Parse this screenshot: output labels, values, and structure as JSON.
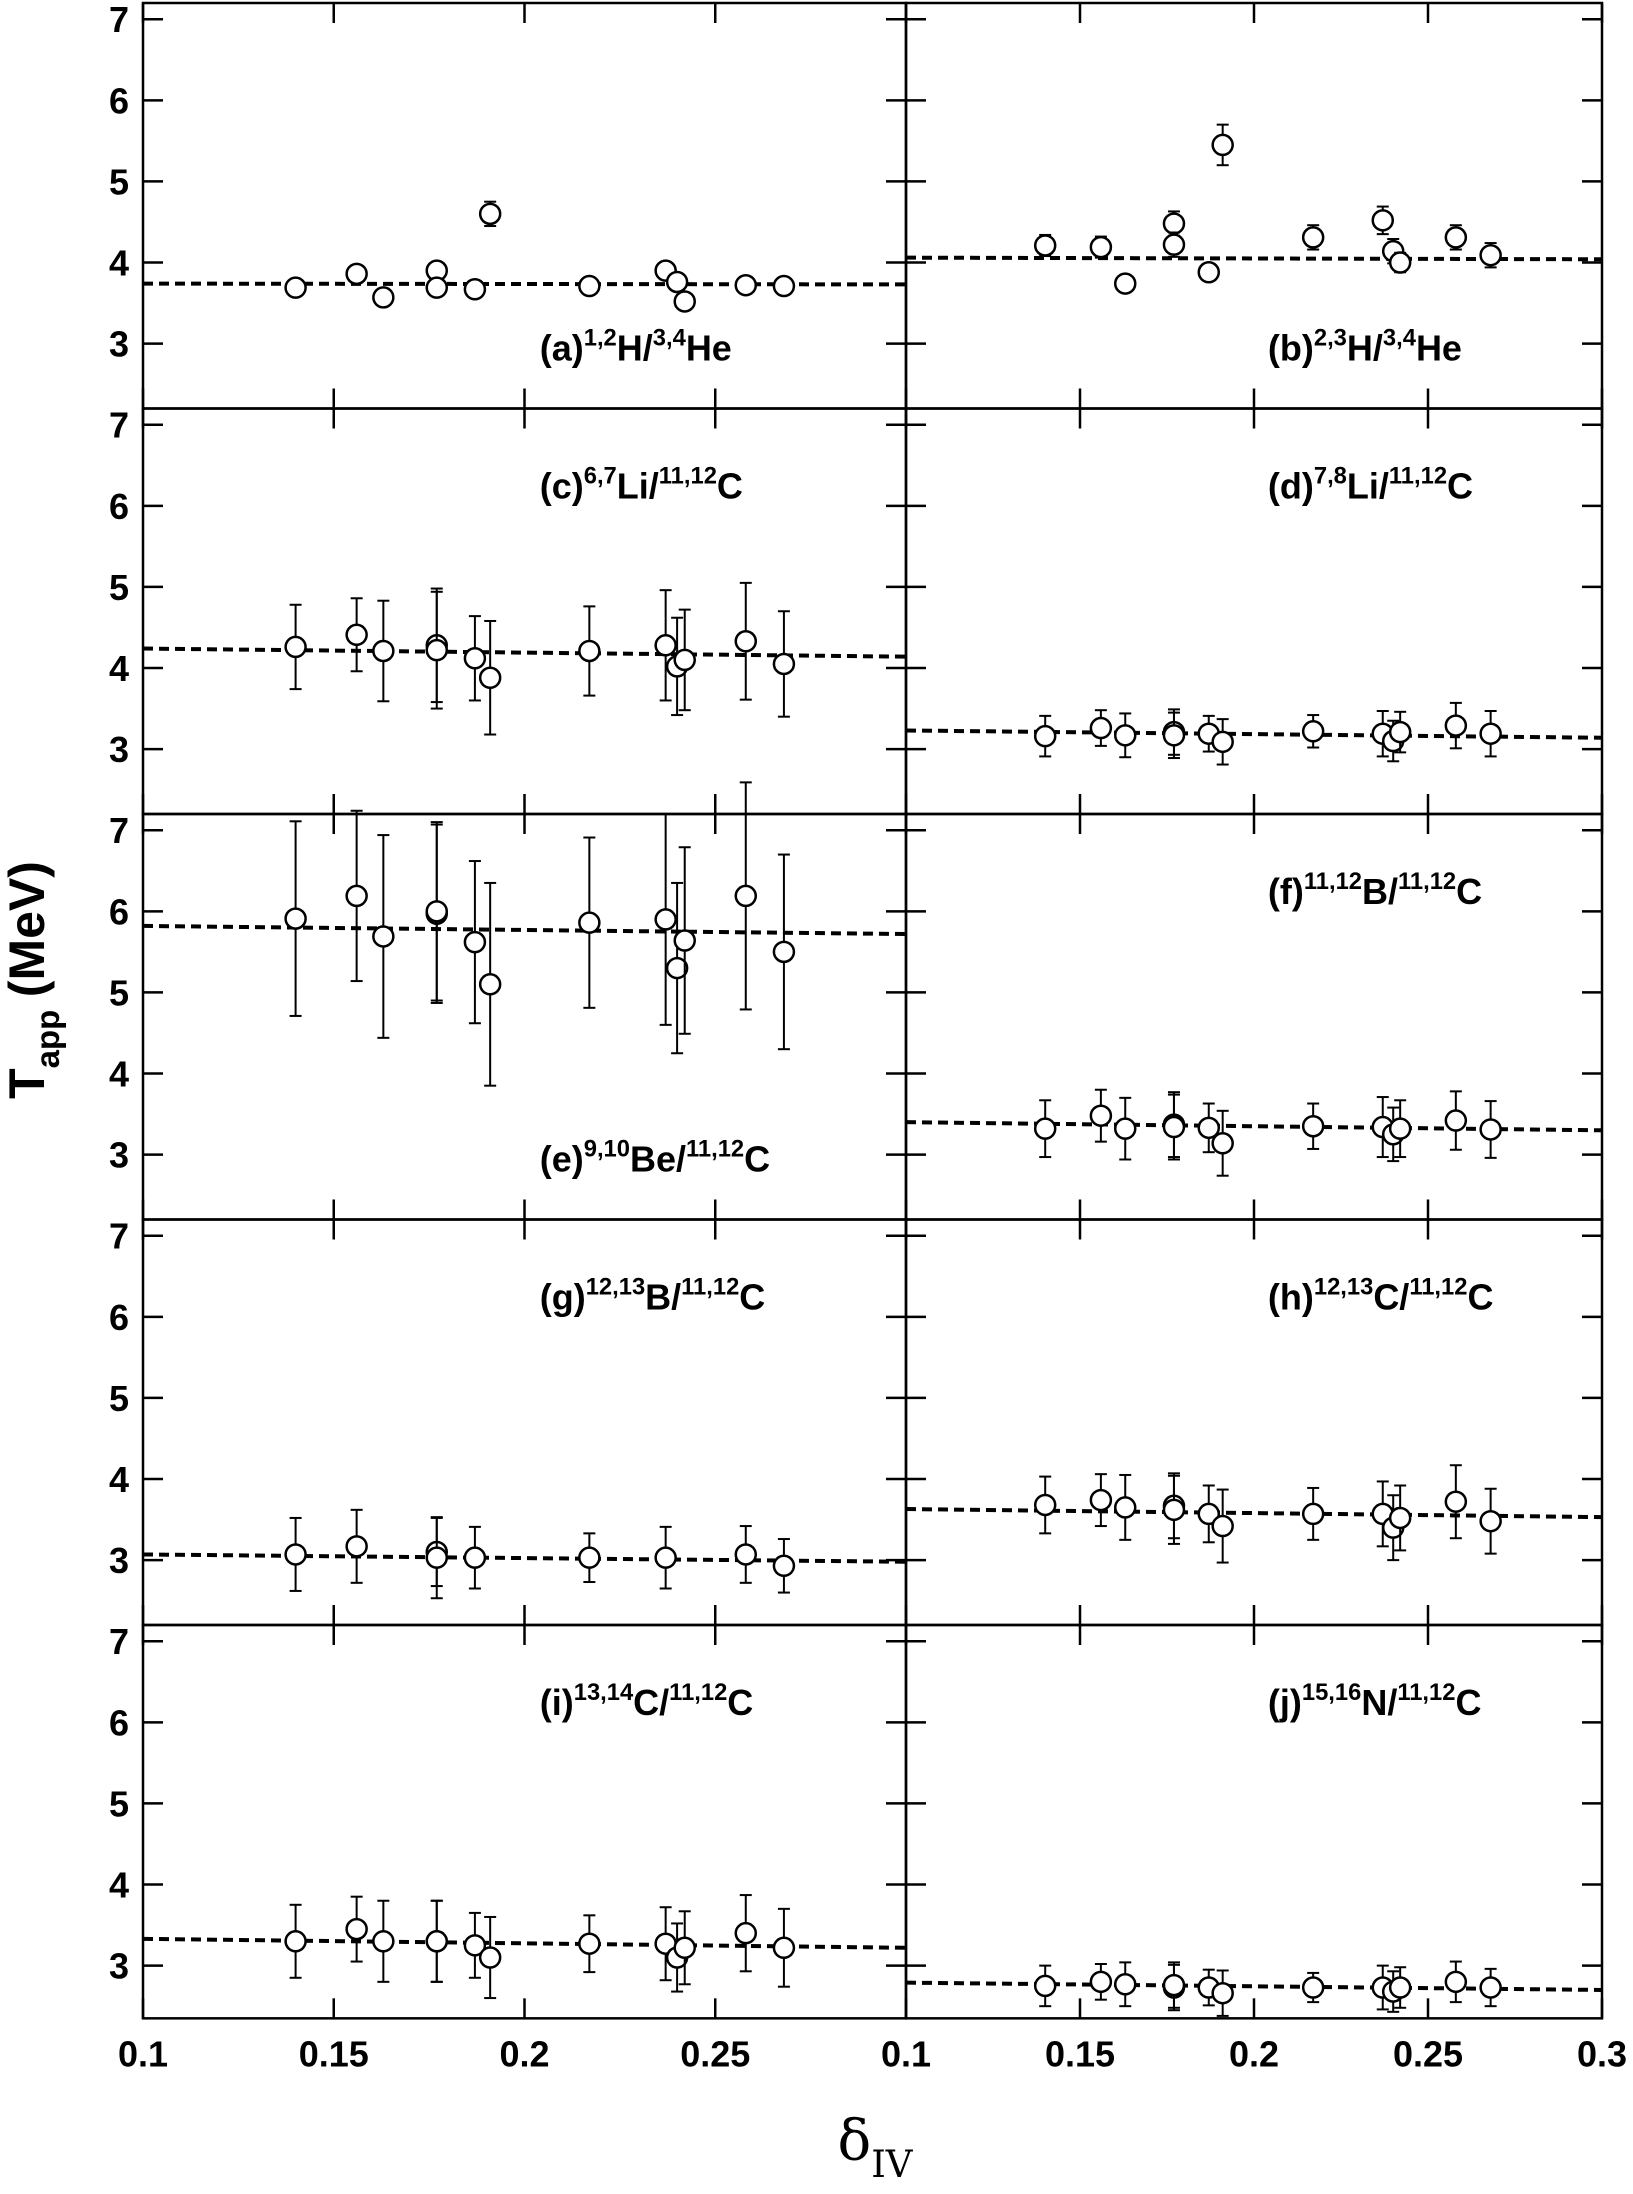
{
  "figure": {
    "ylabel_parts": [
      {
        "text": "T"
      },
      {
        "text": "app",
        "sub": true
      },
      {
        "text": "(MeV)"
      }
    ],
    "xlabel_parts": [
      {
        "text": "δ"
      },
      {
        "text": "IV",
        "sub": true
      }
    ]
  },
  "chart_data": [
    {
      "type": "scatter",
      "label_position": "bottom-right",
      "label_parts": [
        {
          "text": "(a)"
        },
        {
          "text": "1,2",
          "sup": true
        },
        {
          "text": "H/"
        },
        {
          "text": "3,4",
          "sup": true
        },
        {
          "text": "He"
        }
      ],
      "x": [
        0.14,
        0.156,
        0.163,
        0.177,
        0.177,
        0.187,
        0.191,
        0.217,
        0.237,
        0.24,
        0.242,
        0.258,
        0.268
      ],
      "values": [
        3.69,
        3.86,
        3.57,
        3.9,
        3.69,
        3.67,
        4.6,
        3.71,
        3.9,
        3.76,
        3.52,
        3.72,
        3.71
      ],
      "errors": [
        0.07,
        0.07,
        0.07,
        0.07,
        0.07,
        0.07,
        0.15,
        0.07,
        0.07,
        0.07,
        0.07,
        0.07,
        0.07
      ],
      "fit": {
        "x": [
          0.1,
          0.3
        ],
        "y": [
          3.74,
          3.73
        ]
      },
      "xlim": [
        0.1,
        0.3
      ],
      "ylim": [
        2.2,
        7.2
      ],
      "xticks": [
        0.1,
        0.15,
        0.2,
        0.25
      ],
      "yticks": [
        3,
        4,
        5,
        6,
        7
      ],
      "show_xtick_labels": false,
      "show_ytick_labels": true
    },
    {
      "type": "scatter",
      "label_position": "bottom-right",
      "label_parts": [
        {
          "text": "(b)"
        },
        {
          "text": "2,3",
          "sup": true
        },
        {
          "text": "H/"
        },
        {
          "text": "3,4",
          "sup": true
        },
        {
          "text": "He"
        }
      ],
      "x": [
        0.14,
        0.156,
        0.163,
        0.177,
        0.177,
        0.187,
        0.191,
        0.217,
        0.237,
        0.24,
        0.242,
        0.258,
        0.268
      ],
      "values": [
        4.21,
        4.19,
        3.74,
        4.48,
        4.22,
        3.88,
        5.45,
        4.31,
        4.52,
        4.14,
        4.0,
        4.31,
        4.09
      ],
      "errors": [
        0.13,
        0.13,
        0.1,
        0.15,
        0.15,
        0.1,
        0.25,
        0.15,
        0.17,
        0.15,
        0.12,
        0.15,
        0.15
      ],
      "fit": {
        "x": [
          0.1,
          0.3
        ],
        "y": [
          4.06,
          4.04
        ]
      },
      "xlim": [
        0.1,
        0.3
      ],
      "ylim": [
        2.2,
        7.2
      ],
      "xticks": [
        0.1,
        0.15,
        0.2,
        0.25,
        0.3
      ],
      "yticks": [
        3,
        4,
        5,
        6,
        7
      ],
      "show_xtick_labels": false,
      "show_ytick_labels": false
    },
    {
      "type": "scatter",
      "label_position": "top-right",
      "label_parts": [
        {
          "text": "(c)"
        },
        {
          "text": "6,7",
          "sup": true
        },
        {
          "text": "Li/"
        },
        {
          "text": "11,12",
          "sup": true
        },
        {
          "text": "C"
        }
      ],
      "x": [
        0.14,
        0.156,
        0.163,
        0.177,
        0.177,
        0.187,
        0.191,
        0.217,
        0.237,
        0.24,
        0.242,
        0.258,
        0.268
      ],
      "values": [
        4.26,
        4.41,
        4.21,
        4.28,
        4.22,
        4.12,
        3.88,
        4.21,
        4.28,
        4.02,
        4.1,
        4.33,
        4.05
      ],
      "errors": [
        0.52,
        0.45,
        0.62,
        0.7,
        0.72,
        0.52,
        0.7,
        0.55,
        0.68,
        0.6,
        0.62,
        0.72,
        0.65
      ],
      "fit": {
        "x": [
          0.1,
          0.3
        ],
        "y": [
          4.24,
          4.14
        ]
      },
      "xlim": [
        0.1,
        0.3
      ],
      "ylim": [
        2.2,
        7.2
      ],
      "xticks": [
        0.1,
        0.15,
        0.2,
        0.25
      ],
      "yticks": [
        3,
        4,
        5,
        6,
        7
      ],
      "show_xtick_labels": false,
      "show_ytick_labels": true
    },
    {
      "type": "scatter",
      "label_position": "top-right",
      "label_parts": [
        {
          "text": "(d)"
        },
        {
          "text": "7,8",
          "sup": true
        },
        {
          "text": "Li/"
        },
        {
          "text": "11,12",
          "sup": true
        },
        {
          "text": "C"
        }
      ],
      "x": [
        0.14,
        0.156,
        0.163,
        0.177,
        0.177,
        0.187,
        0.191,
        0.217,
        0.237,
        0.24,
        0.242,
        0.258,
        0.268
      ],
      "values": [
        3.16,
        3.26,
        3.17,
        3.21,
        3.17,
        3.19,
        3.09,
        3.22,
        3.19,
        3.1,
        3.21,
        3.29,
        3.19
      ],
      "errors": [
        0.25,
        0.22,
        0.27,
        0.28,
        0.28,
        0.22,
        0.28,
        0.2,
        0.28,
        0.25,
        0.25,
        0.28,
        0.28
      ],
      "fit": {
        "x": [
          0.1,
          0.3
        ],
        "y": [
          3.23,
          3.14
        ]
      },
      "xlim": [
        0.1,
        0.3
      ],
      "ylim": [
        2.2,
        7.2
      ],
      "xticks": [
        0.1,
        0.15,
        0.2,
        0.25,
        0.3
      ],
      "yticks": [
        3,
        4,
        5,
        6,
        7
      ],
      "show_xtick_labels": false,
      "show_ytick_labels": false
    },
    {
      "type": "scatter",
      "label_position": "bottom-right",
      "label_parts": [
        {
          "text": "(e)"
        },
        {
          "text": "9,10",
          "sup": true
        },
        {
          "text": "Be/"
        },
        {
          "text": "11,12",
          "sup": true
        },
        {
          "text": "C"
        }
      ],
      "x": [
        0.14,
        0.156,
        0.163,
        0.177,
        0.177,
        0.187,
        0.191,
        0.217,
        0.237,
        0.24,
        0.242,
        0.258,
        0.268
      ],
      "values": [
        5.91,
        6.19,
        5.69,
        5.97,
        6.0,
        5.62,
        5.1,
        5.86,
        5.9,
        5.3,
        5.64,
        6.19,
        5.5
      ],
      "errors": [
        1.2,
        1.05,
        1.25,
        1.1,
        1.1,
        1.0,
        1.25,
        1.05,
        1.3,
        1.05,
        1.15,
        1.4,
        1.2
      ],
      "fit": {
        "x": [
          0.1,
          0.3
        ],
        "y": [
          5.82,
          5.72
        ]
      },
      "xlim": [
        0.1,
        0.3
      ],
      "ylim": [
        2.2,
        7.2
      ],
      "xticks": [
        0.1,
        0.15,
        0.2,
        0.25
      ],
      "yticks": [
        3,
        4,
        5,
        6,
        7
      ],
      "show_xtick_labels": false,
      "show_ytick_labels": true
    },
    {
      "type": "scatter",
      "label_position": "top-right",
      "label_parts": [
        {
          "text": "(f)"
        },
        {
          "text": "11,12",
          "sup": true
        },
        {
          "text": "B/"
        },
        {
          "text": "11,12",
          "sup": true
        },
        {
          "text": "C"
        }
      ],
      "x": [
        0.14,
        0.156,
        0.163,
        0.177,
        0.177,
        0.187,
        0.191,
        0.217,
        0.237,
        0.24,
        0.242,
        0.258,
        0.268
      ],
      "values": [
        3.32,
        3.48,
        3.32,
        3.37,
        3.34,
        3.33,
        3.14,
        3.35,
        3.34,
        3.25,
        3.32,
        3.42,
        3.31
      ],
      "errors": [
        0.35,
        0.32,
        0.38,
        0.4,
        0.4,
        0.3,
        0.4,
        0.28,
        0.37,
        0.33,
        0.35,
        0.36,
        0.35
      ],
      "fit": {
        "x": [
          0.1,
          0.3
        ],
        "y": [
          3.4,
          3.3
        ]
      },
      "xlim": [
        0.1,
        0.3
      ],
      "ylim": [
        2.2,
        7.2
      ],
      "xticks": [
        0.1,
        0.15,
        0.2,
        0.25,
        0.3
      ],
      "yticks": [
        3,
        4,
        5,
        6,
        7
      ],
      "show_xtick_labels": false,
      "show_ytick_labels": false
    },
    {
      "type": "scatter",
      "label_position": "top-right",
      "label_parts": [
        {
          "text": "(g)"
        },
        {
          "text": "12,13",
          "sup": true
        },
        {
          "text": "B/"
        },
        {
          "text": "11,12",
          "sup": true
        },
        {
          "text": "C"
        }
      ],
      "x": [
        0.14,
        0.156,
        0.177,
        0.177,
        0.187,
        0.217,
        0.237,
        0.258,
        0.268
      ],
      "values": [
        3.07,
        3.17,
        3.1,
        3.03,
        3.03,
        3.03,
        3.03,
        3.07,
        2.93
      ],
      "errors": [
        0.45,
        0.45,
        0.42,
        0.5,
        0.38,
        0.3,
        0.38,
        0.35,
        0.33
      ],
      "fit": {
        "x": [
          0.1,
          0.3
        ],
        "y": [
          3.07,
          2.98
        ]
      },
      "xlim": [
        0.1,
        0.3
      ],
      "ylim": [
        2.2,
        7.2
      ],
      "xticks": [
        0.1,
        0.15,
        0.2,
        0.25
      ],
      "yticks": [
        3,
        4,
        5,
        6,
        7
      ],
      "show_xtick_labels": false,
      "show_ytick_labels": true
    },
    {
      "type": "scatter",
      "label_position": "top-right",
      "label_parts": [
        {
          "text": "(h)"
        },
        {
          "text": "12,13",
          "sup": true
        },
        {
          "text": "C/"
        },
        {
          "text": "11,12",
          "sup": true
        },
        {
          "text": "C"
        }
      ],
      "x": [
        0.14,
        0.156,
        0.163,
        0.177,
        0.177,
        0.187,
        0.191,
        0.217,
        0.237,
        0.24,
        0.242,
        0.258,
        0.268
      ],
      "values": [
        3.68,
        3.74,
        3.65,
        3.67,
        3.62,
        3.57,
        3.42,
        3.57,
        3.57,
        3.4,
        3.52,
        3.72,
        3.48
      ],
      "errors": [
        0.35,
        0.32,
        0.4,
        0.4,
        0.42,
        0.35,
        0.45,
        0.32,
        0.4,
        0.4,
        0.4,
        0.45,
        0.4
      ],
      "fit": {
        "x": [
          0.1,
          0.3
        ],
        "y": [
          3.63,
          3.53
        ]
      },
      "xlim": [
        0.1,
        0.3
      ],
      "ylim": [
        2.2,
        7.2
      ],
      "xticks": [
        0.1,
        0.15,
        0.2,
        0.25,
        0.3
      ],
      "yticks": [
        3,
        4,
        5,
        6,
        7
      ],
      "show_xtick_labels": false,
      "show_ytick_labels": false
    },
    {
      "type": "scatter",
      "label_position": "top-right",
      "label_parts": [
        {
          "text": "(i)"
        },
        {
          "text": "13,14",
          "sup": true
        },
        {
          "text": "C/"
        },
        {
          "text": "11,12",
          "sup": true
        },
        {
          "text": "C"
        }
      ],
      "x": [
        0.14,
        0.156,
        0.163,
        0.177,
        0.177,
        0.187,
        0.191,
        0.217,
        0.237,
        0.24,
        0.242,
        0.258,
        0.268
      ],
      "values": [
        3.3,
        3.45,
        3.3,
        3.3,
        3.3,
        3.25,
        3.1,
        3.27,
        3.27,
        3.1,
        3.22,
        3.4,
        3.22
      ],
      "errors": [
        0.45,
        0.4,
        0.5,
        0.5,
        0.5,
        0.4,
        0.5,
        0.35,
        0.45,
        0.42,
        0.45,
        0.47,
        0.48
      ],
      "fit": {
        "x": [
          0.1,
          0.3
        ],
        "y": [
          3.33,
          3.22
        ]
      },
      "xlim": [
        0.1,
        0.3
      ],
      "ylim": [
        2.35,
        7.2
      ],
      "xticks": [
        0.1,
        0.15,
        0.2,
        0.25
      ],
      "yticks": [
        3,
        4,
        5,
        6,
        7
      ],
      "show_xtick_labels": true,
      "show_ytick_labels": true
    },
    {
      "type": "scatter",
      "label_position": "top-right",
      "label_parts": [
        {
          "text": "(j)"
        },
        {
          "text": "15,16",
          "sup": true
        },
        {
          "text": "N/"
        },
        {
          "text": "11,12",
          "sup": true
        },
        {
          "text": "C"
        }
      ],
      "x": [
        0.14,
        0.156,
        0.163,
        0.177,
        0.177,
        0.187,
        0.191,
        0.217,
        0.237,
        0.24,
        0.242,
        0.258,
        0.268
      ],
      "values": [
        2.75,
        2.8,
        2.77,
        2.73,
        2.76,
        2.73,
        2.66,
        2.73,
        2.73,
        2.68,
        2.73,
        2.8,
        2.73
      ],
      "errors": [
        0.25,
        0.22,
        0.27,
        0.28,
        0.28,
        0.22,
        0.28,
        0.18,
        0.27,
        0.25,
        0.25,
        0.25,
        0.23
      ],
      "fit": {
        "x": [
          0.1,
          0.3
        ],
        "y": [
          2.79,
          2.7
        ]
      },
      "xlim": [
        0.1,
        0.3
      ],
      "ylim": [
        2.35,
        7.2
      ],
      "xticks": [
        0.1,
        0.15,
        0.2,
        0.25,
        0.3
      ],
      "yticks": [
        3,
        4,
        5,
        6,
        7
      ],
      "show_xtick_labels": true,
      "show_ytick_labels": false
    }
  ]
}
